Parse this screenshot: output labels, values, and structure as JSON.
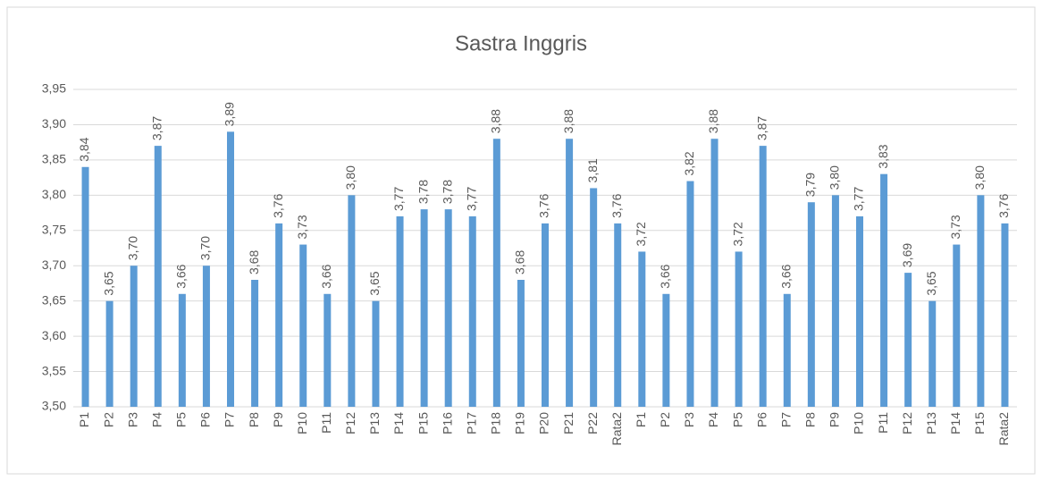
{
  "chart_data": {
    "type": "bar",
    "title": "Sastra Inggris",
    "categories": [
      "P1",
      "P2",
      "P3",
      "P4",
      "P5",
      "P6",
      "P7",
      "P8",
      "P9",
      "P10",
      "P11",
      "P12",
      "P13",
      "P14",
      "P15",
      "P16",
      "P17",
      "P18",
      "P19",
      "P20",
      "P21",
      "P22",
      "Rata2",
      "P1",
      "P2",
      "P3",
      "P4",
      "P5",
      "P6",
      "P7",
      "P8",
      "P9",
      "P10",
      "P11",
      "P12",
      "P13",
      "P14",
      "P15",
      "Rata2"
    ],
    "values": [
      3.84,
      3.65,
      3.7,
      3.87,
      3.66,
      3.7,
      3.89,
      3.68,
      3.76,
      3.73,
      3.66,
      3.8,
      3.65,
      3.77,
      3.78,
      3.78,
      3.77,
      3.88,
      3.68,
      3.76,
      3.88,
      3.81,
      3.76,
      3.72,
      3.66,
      3.82,
      3.88,
      3.72,
      3.87,
      3.66,
      3.79,
      3.8,
      3.77,
      3.83,
      3.69,
      3.65,
      3.73,
      3.8,
      3.76
    ],
    "value_labels": [
      "3,84",
      "3,65",
      "3,70",
      "3,87",
      "3,66",
      "3,70",
      "3,89",
      "3,68",
      "3,76",
      "3,73",
      "3,66",
      "3,80",
      "3,65",
      "3,77",
      "3,78",
      "3,78",
      "3,77",
      "3,88",
      "3,68",
      "3,76",
      "3,88",
      "3,81",
      "3,76",
      "3,72",
      "3,66",
      "3,82",
      "3,88",
      "3,72",
      "3,87",
      "3,66",
      "3,79",
      "3,80",
      "3,77",
      "3,83",
      "3,69",
      "3,65",
      "3,73",
      "3,80",
      "3,76"
    ],
    "color": "#5b9bd5",
    "ylim": [
      3.5,
      3.95
    ],
    "yticks": [
      {
        "value": 3.5,
        "label": "3,50"
      },
      {
        "value": 3.55,
        "label": "3,55"
      },
      {
        "value": 3.6,
        "label": "3,60"
      },
      {
        "value": 3.65,
        "label": "3,65"
      },
      {
        "value": 3.7,
        "label": "3,70"
      },
      {
        "value": 3.75,
        "label": "3,75"
      },
      {
        "value": 3.8,
        "label": "3,80"
      },
      {
        "value": 3.85,
        "label": "3,85"
      },
      {
        "value": 3.9,
        "label": "3,90"
      },
      {
        "value": 3.95,
        "label": "3,95"
      }
    ],
    "grid": true
  }
}
